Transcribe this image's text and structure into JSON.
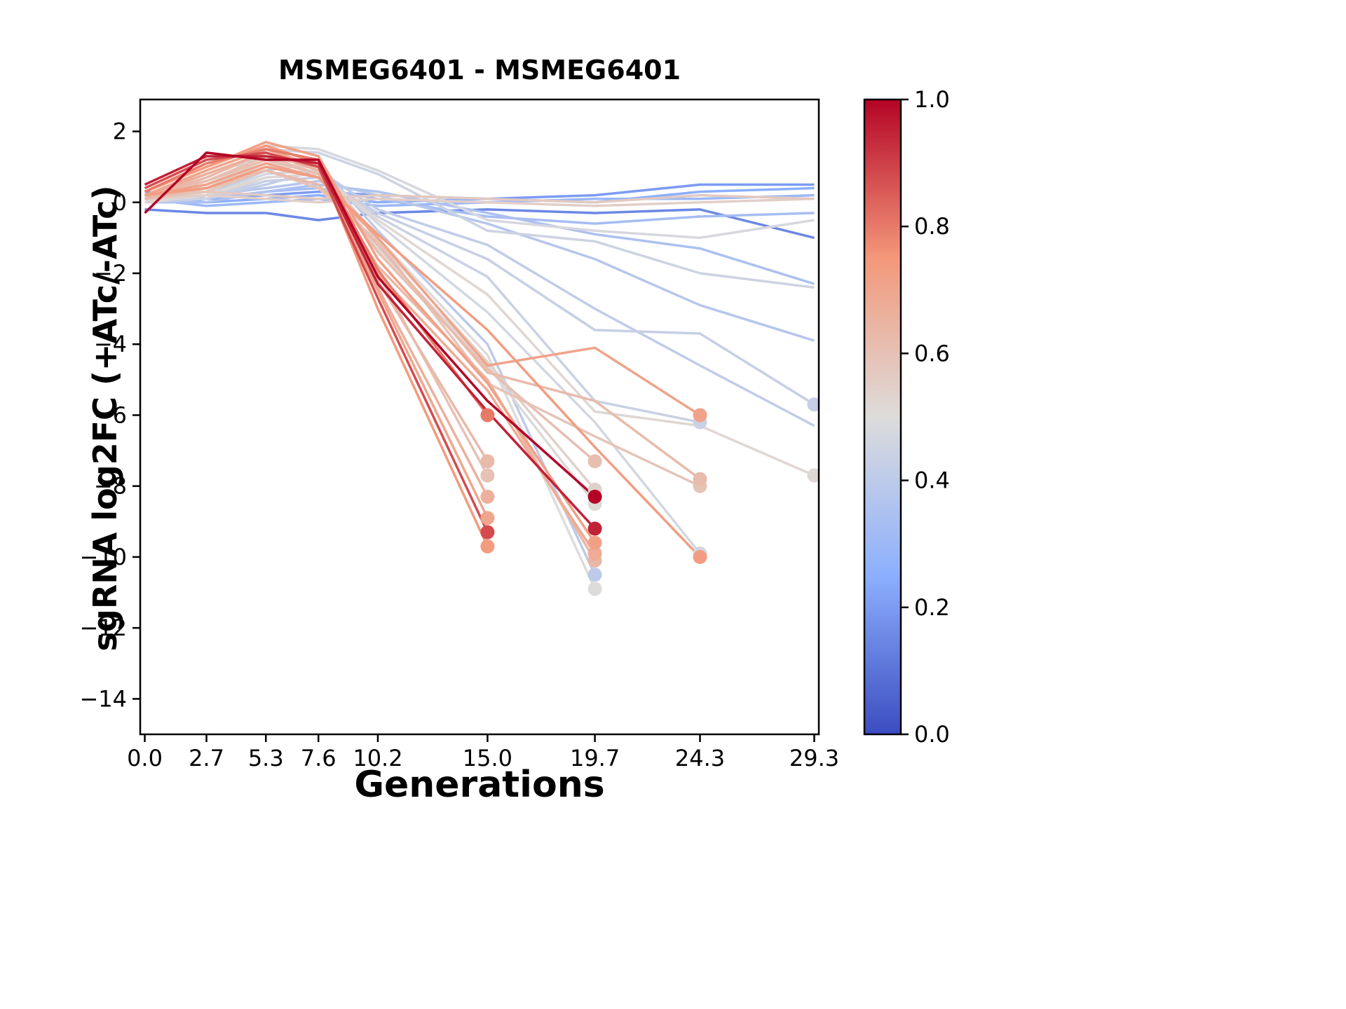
{
  "figure": {
    "background": "#ffffff"
  },
  "chart_data": {
    "type": "line",
    "title": "MSMEG6401 - MSMEG6401",
    "xlabel": "Generations",
    "ylabel": "sgRNA log2FC (+ATc/-ATc)",
    "x_ticks": [
      0.0,
      2.7,
      5.3,
      7.6,
      10.2,
      15.0,
      19.7,
      24.3,
      29.3
    ],
    "x_tick_labels": [
      "0.0",
      "2.7",
      "5.3",
      "7.6",
      "10.2",
      "15.0",
      "19.7",
      "24.3",
      "29.3"
    ],
    "y_ticks": [
      2,
      0,
      -2,
      -4,
      -6,
      -8,
      -10,
      -12,
      -14
    ],
    "y_tick_labels": [
      "2",
      "0",
      "−2",
      "−4",
      "−6",
      "−8",
      "−10",
      "−12",
      "−14"
    ],
    "xlim": [
      -0.2,
      29.5
    ],
    "ylim": [
      -15.0,
      2.9
    ],
    "grid": false,
    "legend": "none",
    "colorbar": {
      "ticks": [
        0.0,
        0.2,
        0.4,
        0.6,
        0.8,
        1.0
      ],
      "tick_labels": [
        "0.0",
        "0.2",
        "0.4",
        "0.6",
        "0.8",
        "1.0"
      ]
    },
    "colormap": {
      "name": "coolwarm",
      "anchors": [
        [
          0.0,
          "#3b4cc0"
        ],
        [
          0.25,
          "#8caffe"
        ],
        [
          0.5,
          "#dddcdb"
        ],
        [
          0.75,
          "#f4987a"
        ],
        [
          1.0,
          "#b40426"
        ]
      ]
    },
    "series": [
      {
        "color_value": 1.0,
        "x": [
          0,
          2.7,
          5.3,
          7.6,
          10.2,
          15.0,
          19.7
        ],
        "y": [
          -0.3,
          1.4,
          1.2,
          1.2,
          -2.1,
          -5.6,
          -8.3
        ],
        "end_marker": true
      },
      {
        "color_value": 0.95,
        "x": [
          0,
          2.7,
          5.3,
          7.6,
          10.2,
          15.0,
          19.7
        ],
        "y": [
          0.5,
          1.3,
          1.3,
          1.1,
          -2.3,
          -5.9,
          -9.2
        ],
        "end_marker": true
      },
      {
        "color_value": 0.88,
        "x": [
          0,
          2.7,
          5.3,
          7.6,
          10.2,
          15.0
        ],
        "y": [
          0.4,
          1.2,
          1.4,
          1.0,
          -2.7,
          -9.3
        ],
        "end_marker": true
      },
      {
        "color_value": 0.8,
        "x": [
          0,
          2.7,
          5.3,
          7.6,
          10.2,
          15.0
        ],
        "y": [
          0.3,
          1.1,
          1.5,
          1.2,
          -1.9,
          -6.0
        ],
        "end_marker": true
      },
      {
        "color_value": 0.74,
        "x": [
          0,
          2.7,
          5.3,
          7.6,
          10.2,
          15.0
        ],
        "y": [
          0.3,
          1.0,
          1.6,
          1.1,
          -3.0,
          -9.7
        ],
        "end_marker": true
      },
      {
        "color_value": 0.7,
        "x": [
          0,
          2.7,
          5.3,
          7.6,
          10.2,
          15.0
        ],
        "y": [
          0.2,
          0.9,
          1.5,
          1.0,
          -2.5,
          -8.9
        ],
        "end_marker": true
      },
      {
        "color_value": 0.66,
        "x": [
          0,
          2.7,
          5.3,
          7.6,
          10.2,
          15.0
        ],
        "y": [
          0.2,
          0.8,
          1.4,
          0.9,
          -2.4,
          -8.3
        ],
        "end_marker": true
      },
      {
        "color_value": 0.63,
        "x": [
          0,
          2.7,
          5.3,
          7.6,
          10.2,
          15.0
        ],
        "y": [
          0.1,
          0.7,
          1.4,
          0.9,
          -2.2,
          -7.3
        ],
        "end_marker": true
      },
      {
        "color_value": 0.6,
        "x": [
          0,
          2.7,
          5.3,
          7.6,
          10.2,
          15.0
        ],
        "y": [
          0.1,
          0.6,
          1.3,
          0.8,
          -2.0,
          -7.7
        ],
        "end_marker": true
      },
      {
        "color_value": 0.72,
        "x": [
          0,
          2.7,
          5.3,
          7.6,
          10.2,
          15.0,
          19.7
        ],
        "y": [
          0.3,
          1.0,
          1.7,
          1.3,
          -1.6,
          -5.1,
          -9.6
        ],
        "end_marker": true
      },
      {
        "color_value": 0.68,
        "x": [
          0,
          2.7,
          5.3,
          7.6,
          10.2,
          15.0,
          19.7
        ],
        "y": [
          0.2,
          0.9,
          1.5,
          1.0,
          -2.0,
          -5.3,
          -9.9
        ],
        "end_marker": true
      },
      {
        "color_value": 0.64,
        "x": [
          0,
          2.7,
          5.3,
          7.6,
          10.2,
          15.0,
          19.7
        ],
        "y": [
          0.1,
          0.8,
          1.4,
          0.9,
          -1.8,
          -5.0,
          -10.1
        ],
        "end_marker": true
      },
      {
        "color_value": 0.61,
        "x": [
          0,
          2.7,
          5.3,
          7.6,
          10.2,
          15.0,
          19.7
        ],
        "y": [
          0.2,
          0.6,
          1.2,
          0.8,
          -1.4,
          -4.7,
          -7.3
        ],
        "end_marker": true
      },
      {
        "color_value": 0.54,
        "x": [
          0,
          2.7,
          5.3,
          7.6,
          10.2,
          15.0,
          19.7
        ],
        "y": [
          0.0,
          0.5,
          1.2,
          1.1,
          -1.1,
          -4.5,
          -8.1
        ],
        "end_marker": true
      },
      {
        "color_value": 0.51,
        "x": [
          0,
          2.7,
          5.3,
          7.6,
          10.2,
          15.0,
          19.7
        ],
        "y": [
          0.0,
          0.4,
          1.1,
          1.0,
          -1.3,
          -4.6,
          -8.5
        ],
        "end_marker": true
      },
      {
        "color_value": 0.5,
        "x": [
          0,
          2.7,
          5.3,
          7.6,
          10.2,
          15.0,
          19.7
        ],
        "y": [
          0.0,
          0.3,
          1.0,
          1.0,
          -1.0,
          -4.3,
          -10.9
        ],
        "end_marker": true
      },
      {
        "color_value": 0.4,
        "x": [
          0,
          2.7,
          5.3,
          7.6,
          10.2,
          15.0,
          19.7
        ],
        "y": [
          0.1,
          0.2,
          0.9,
          1.1,
          -0.8,
          -4.0,
          -10.5
        ],
        "end_marker": true
      },
      {
        "color_value": 0.71,
        "x": [
          0,
          2.7,
          5.3,
          7.6,
          10.2,
          15.0,
          19.7,
          24.3
        ],
        "y": [
          0.2,
          0.5,
          1.1,
          0.7,
          -1.0,
          -4.6,
          -4.1,
          -6.0
        ],
        "end_marker": true
      },
      {
        "color_value": 0.62,
        "x": [
          0,
          2.7,
          5.3,
          7.6,
          10.2,
          15.0,
          19.7,
          24.3
        ],
        "y": [
          0.1,
          0.4,
          0.9,
          0.5,
          -1.2,
          -4.8,
          -5.6,
          -7.8
        ],
        "end_marker": true
      },
      {
        "color_value": 0.59,
        "x": [
          0,
          2.7,
          5.3,
          7.6,
          10.2,
          15.0,
          19.7,
          24.3
        ],
        "y": [
          0.1,
          0.3,
          0.9,
          0.4,
          -1.1,
          -5.1,
          -6.6,
          -8.0
        ],
        "end_marker": true
      },
      {
        "color_value": 0.73,
        "x": [
          0,
          2.7,
          5.3,
          7.6,
          10.2,
          15.0,
          19.7,
          24.3
        ],
        "y": [
          0.2,
          0.4,
          1.0,
          0.7,
          -0.9,
          -3.6,
          -6.9,
          -10.0
        ],
        "end_marker": true
      },
      {
        "color_value": 0.47,
        "x": [
          0,
          2.7,
          5.3,
          7.6,
          10.2,
          15.0,
          19.7,
          24.3
        ],
        "y": [
          0.0,
          0.2,
          0.8,
          0.9,
          -0.6,
          -3.1,
          -6.2,
          -9.9
        ],
        "end_marker": true
      },
      {
        "color_value": 0.44,
        "x": [
          0,
          2.7,
          5.3,
          7.6,
          10.2,
          15.0,
          19.7,
          24.3
        ],
        "y": [
          0.1,
          0.1,
          0.7,
          0.8,
          -0.4,
          -2.1,
          -5.6,
          -6.2
        ],
        "end_marker": true
      },
      {
        "color_value": 0.43,
        "x": [
          0,
          2.7,
          5.3,
          7.6,
          10.2,
          15.0,
          19.7,
          24.3,
          29.3
        ],
        "y": [
          0.0,
          0.1,
          0.6,
          0.7,
          -0.3,
          -1.6,
          -3.6,
          -3.7,
          -5.7
        ],
        "end_marker": true
      },
      {
        "color_value": 0.52,
        "x": [
          0,
          2.7,
          5.3,
          7.6,
          10.2,
          15.0,
          19.7,
          24.3,
          29.3
        ],
        "y": [
          0.0,
          0.2,
          0.7,
          0.8,
          -0.5,
          -2.6,
          -5.9,
          -6.3,
          -7.7
        ],
        "end_marker": true
      },
      {
        "color_value": 0.41,
        "x": [
          0,
          2.7,
          5.3,
          7.6,
          10.2,
          15.0,
          19.7,
          24.3,
          29.3
        ],
        "y": [
          0.0,
          0.1,
          0.5,
          0.9,
          -0.2,
          -1.2,
          -3.0,
          -4.6,
          -6.3
        ],
        "end_marker": false
      },
      {
        "color_value": 0.38,
        "x": [
          0,
          2.7,
          5.3,
          7.6,
          10.2,
          15.0,
          19.7,
          24.3,
          29.3
        ],
        "y": [
          0.1,
          0.2,
          0.4,
          0.6,
          0.2,
          -0.6,
          -1.6,
          -2.9,
          -3.9
        ],
        "end_marker": false
      },
      {
        "color_value": 0.35,
        "x": [
          0,
          2.7,
          5.3,
          7.6,
          10.2,
          15.0,
          19.7,
          24.3,
          29.3
        ],
        "y": [
          0.0,
          0.0,
          0.3,
          0.5,
          0.3,
          -0.3,
          -0.9,
          -1.3,
          -2.3
        ],
        "end_marker": false
      },
      {
        "color_value": 0.45,
        "x": [
          0,
          2.7,
          5.3,
          7.6,
          10.2,
          15.0,
          19.7,
          24.3,
          29.3
        ],
        "y": [
          0.0,
          0.2,
          1.5,
          1.4,
          0.8,
          -0.8,
          -1.1,
          -2.0,
          -2.4
        ],
        "end_marker": false
      },
      {
        "color_value": 0.48,
        "x": [
          0,
          2.7,
          5.3,
          7.6,
          10.2,
          15.0,
          19.7,
          24.3,
          29.3
        ],
        "y": [
          0.1,
          0.3,
          1.6,
          1.5,
          0.9,
          -0.5,
          -0.8,
          -1.0,
          -0.5
        ],
        "end_marker": false
      },
      {
        "color_value": 0.2,
        "x": [
          0,
          2.7,
          5.3,
          7.6,
          10.2,
          15.0,
          19.7,
          24.3,
          29.3
        ],
        "y": [
          0.3,
          0.1,
          0.2,
          0.3,
          0.2,
          0.1,
          0.2,
          0.5,
          0.5
        ],
        "end_marker": false
      },
      {
        "color_value": 0.25,
        "x": [
          0,
          2.7,
          5.3,
          7.6,
          10.2,
          15.0,
          19.7,
          24.3,
          29.3
        ],
        "y": [
          0.2,
          0.0,
          0.1,
          0.2,
          0.0,
          0.1,
          0.0,
          0.3,
          0.4
        ],
        "end_marker": false
      },
      {
        "color_value": 0.3,
        "x": [
          0,
          2.7,
          5.3,
          7.6,
          10.2,
          15.0,
          19.7,
          24.3,
          29.3
        ],
        "y": [
          0.1,
          -0.1,
          0.0,
          0.1,
          -0.1,
          0.0,
          0.1,
          0.1,
          0.2
        ],
        "end_marker": false
      },
      {
        "color_value": 0.15,
        "x": [
          0,
          2.7,
          5.3,
          7.6,
          10.2,
          15.0,
          19.7,
          24.3,
          29.3
        ],
        "y": [
          -0.2,
          -0.3,
          -0.3,
          -0.5,
          -0.3,
          -0.2,
          -0.3,
          -0.2,
          -1.0
        ],
        "end_marker": false
      },
      {
        "color_value": 0.57,
        "x": [
          0,
          2.7,
          5.3,
          7.6,
          10.2,
          15.0,
          19.7,
          24.3,
          29.3
        ],
        "y": [
          0.2,
          0.3,
          0.2,
          0.1,
          0.2,
          0.1,
          0.0,
          0.2,
          0.1
        ],
        "end_marker": false
      },
      {
        "color_value": 0.55,
        "x": [
          0,
          2.7,
          5.3,
          7.6,
          10.2,
          15.0,
          19.7,
          24.3,
          29.3
        ],
        "y": [
          0.1,
          0.2,
          0.1,
          0.0,
          0.1,
          0.0,
          -0.1,
          0.0,
          0.1
        ],
        "end_marker": false
      },
      {
        "color_value": 0.33,
        "x": [
          0,
          2.7,
          5.3,
          7.6,
          10.2,
          15.0,
          19.7,
          24.3,
          29.3
        ],
        "y": [
          0.2,
          0.1,
          0.3,
          0.4,
          0.1,
          -0.4,
          -0.6,
          -0.4,
          -0.3
        ],
        "end_marker": false
      }
    ]
  }
}
